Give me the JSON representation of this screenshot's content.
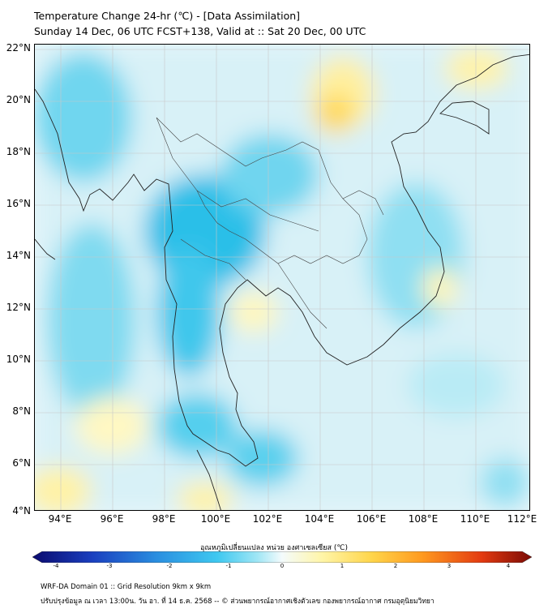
{
  "header": {
    "title_line1": "Temperature Change 24-hr (℃) - [Data Assimilation]",
    "title_line2": "Sunday 14 Dec, 06 UTC FCST+138, Valid at :: Sat 20 Dec, 00 UTC"
  },
  "axes": {
    "lat_labels": [
      "22°N",
      "20°N",
      "18°N",
      "16°N",
      "14°N",
      "12°N",
      "10°N",
      "8°N",
      "6°N",
      "4°N"
    ],
    "lon_labels": [
      "94°E",
      "96°E",
      "98°E",
      "100°E",
      "102°E",
      "104°E",
      "106°E",
      "108°E",
      "110°E",
      "112°E"
    ]
  },
  "colorbar": {
    "label": "อุณหภูมิเปลี่ยนแปลง หน่วย องศาเซลเซียส (℃)",
    "ticks": [
      "-4",
      "-3",
      "-2",
      "-1",
      "0",
      "1",
      "2",
      "3",
      "4"
    ],
    "range": [
      -4,
      4
    ],
    "colors": [
      "#0a0a6e",
      "#1a3fbf",
      "#2a8fe0",
      "#3ec8f0",
      "#9fe6f5",
      "#f4fbfc",
      "#fff5a8",
      "#ffd54a",
      "#ff9a1f",
      "#e33a10",
      "#7a0a05"
    ]
  },
  "footer": {
    "line1": "WRF-DA Domain 01 :: Grid Resolution 9km x 9km",
    "line2": "ปรับปรุงข้อมูล ณ เวลา 13:00น. วัน อา. ที่ 14 ธ.ค. 2568 -- © ส่วนพยากรณ์อากาศเชิงตัวเลข กองพยากรณ์อากาศ กรมอุตุนิยมวิทยา"
  }
}
